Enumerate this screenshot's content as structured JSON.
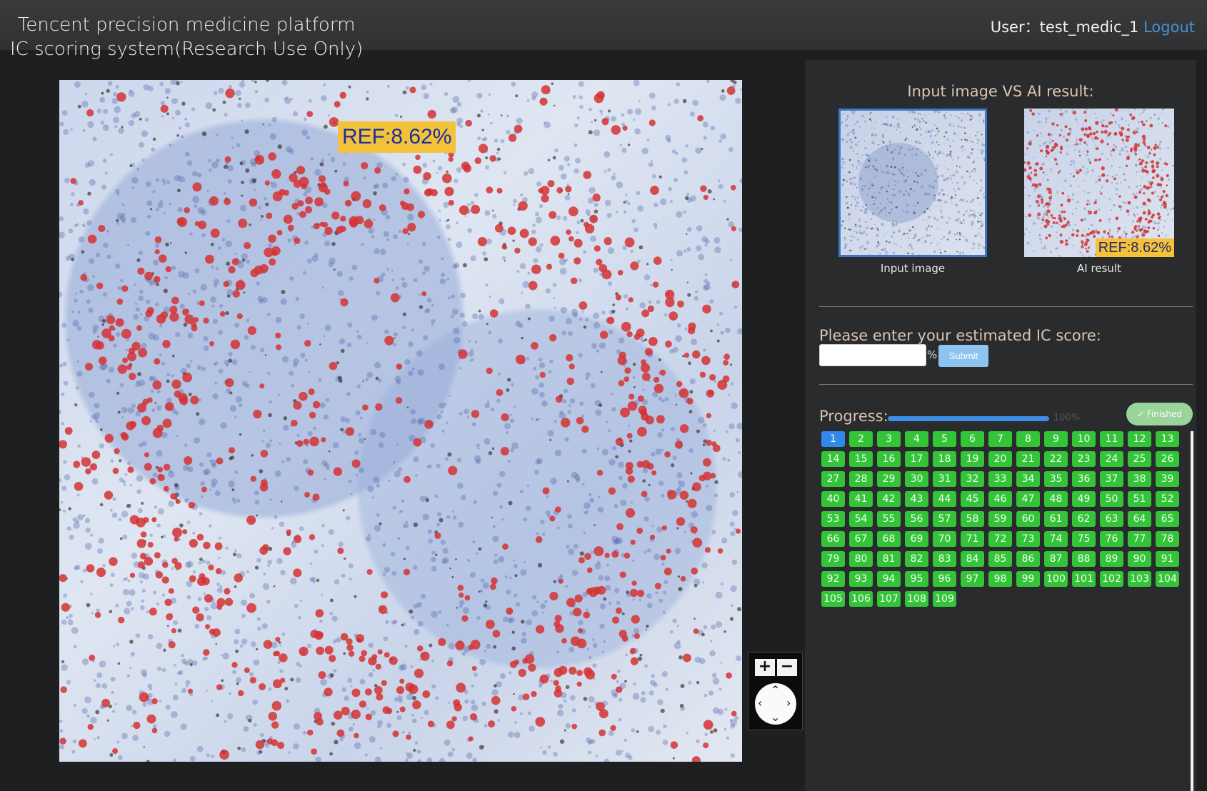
{
  "header": {
    "title_line1": "Tencent precision medicine platform",
    "title_line2": "IC scoring system(Research Use Only)",
    "user_label": "User：",
    "username": "test_medic_1",
    "logout_label": "Logout"
  },
  "viewer": {
    "ref_label": "REF:8.62%"
  },
  "zoom": {
    "plus_label": "+",
    "minus_label": "−"
  },
  "panel": {
    "compare_title": "Input image VS AI result:",
    "input_caption": "Input image",
    "ai_caption": "AI result",
    "ai_ref_label": "REF:8.62%",
    "score_label": "Please enter your estimated IC score:",
    "score_value": "",
    "percent_sign": "%",
    "submit_label": "Submit",
    "progress_label": "Progress:",
    "progress_value": 1.0,
    "progress_text": "100%",
    "finished_label": "✓ Finished",
    "active_item": 1,
    "items": [
      1,
      2,
      3,
      4,
      5,
      6,
      7,
      8,
      9,
      10,
      11,
      12,
      13,
      14,
      15,
      16,
      17,
      18,
      19,
      20,
      21,
      22,
      23,
      24,
      25,
      26,
      27,
      28,
      29,
      30,
      31,
      32,
      33,
      34,
      35,
      36,
      37,
      38,
      39,
      40,
      41,
      42,
      43,
      44,
      45,
      46,
      47,
      48,
      49,
      50,
      51,
      52,
      53,
      54,
      55,
      56,
      57,
      58,
      59,
      60,
      61,
      62,
      63,
      64,
      65,
      66,
      67,
      68,
      69,
      70,
      71,
      72,
      73,
      74,
      75,
      76,
      77,
      78,
      79,
      80,
      81,
      82,
      83,
      84,
      85,
      86,
      87,
      88,
      89,
      90,
      91,
      92,
      93,
      94,
      95,
      96,
      97,
      98,
      99,
      100,
      101,
      102,
      103,
      104,
      105,
      106,
      107,
      108,
      109
    ]
  },
  "colors": {
    "accent": "#3189ec",
    "done": "#33c438",
    "overlay": "#d43b3b",
    "ref_bg": "#f3c23a"
  }
}
